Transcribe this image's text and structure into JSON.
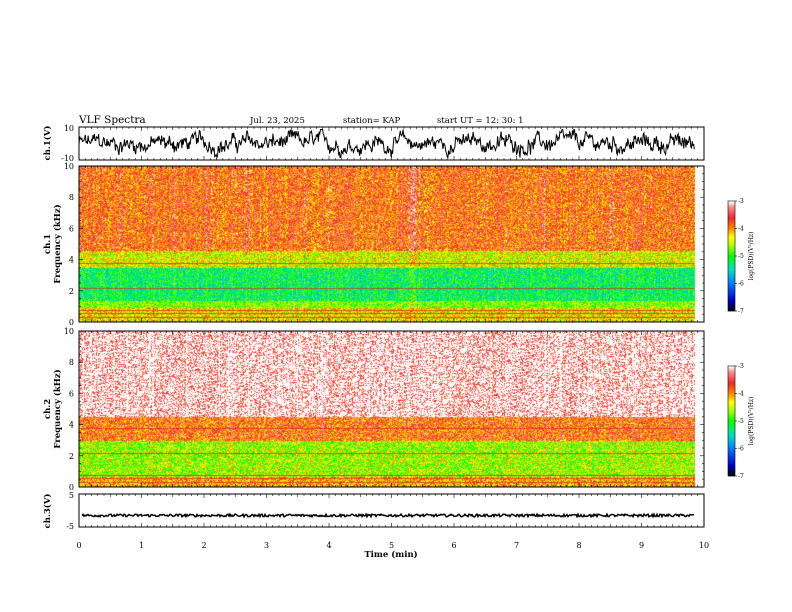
{
  "header": {
    "title": "VLF Spectra",
    "date": "Jul. 23, 2025",
    "station": "station= KAP",
    "start": "start  UT =   12: 30: 1"
  },
  "chart_data": [
    {
      "type": "line",
      "name": "ch1-waveform",
      "ylabel": "ch.1(V)",
      "ylim": [
        -10,
        10
      ],
      "ytick_labels": [
        "10",
        "-10"
      ],
      "xlim": [
        0,
        10
      ],
      "description_series": "voltage trace, fluctuating roughly between -8 and 8 V"
    },
    {
      "type": "heatmap",
      "name": "ch1-spectrogram",
      "ylabel": "ch.1\nFrequency  (kHz)",
      "ylim": [
        0,
        10
      ],
      "xlim": [
        0,
        10
      ],
      "data_end_min": 9.85,
      "ytick_labels": [
        "0",
        "2",
        "4",
        "6",
        "8",
        "10"
      ],
      "bands": [
        {
          "from_khz": 0.0,
          "to_khz": 0.9,
          "log_psd": -4.3
        },
        {
          "from_khz": 0.9,
          "to_khz": 1.4,
          "log_psd": -4.7
        },
        {
          "from_khz": 1.4,
          "to_khz": 3.5,
          "log_psd": -5.2
        },
        {
          "from_khz": 3.5,
          "to_khz": 4.6,
          "log_psd": -4.4
        },
        {
          "from_khz": 4.6,
          "to_khz": 10.0,
          "log_psd": -3.8
        }
      ],
      "colorbar": {
        "label": "log(PSD)(V²/Hz)",
        "ticks": [
          "-3",
          "-4",
          "-5",
          "-6",
          "-7"
        ],
        "range": [
          -7,
          -3
        ]
      }
    },
    {
      "type": "heatmap",
      "name": "ch2-spectrogram",
      "ylabel": "ch.2\nFrequency  (kHz)",
      "ylim": [
        0,
        10
      ],
      "xlim": [
        0,
        10
      ],
      "data_end_min": 9.85,
      "ytick_labels": [
        "0",
        "2",
        "4",
        "6",
        "8",
        "10"
      ],
      "bands": [
        {
          "from_khz": 0.0,
          "to_khz": 0.7,
          "log_psd": -4.1
        },
        {
          "from_khz": 0.7,
          "to_khz": 3.0,
          "log_psd": -4.6
        },
        {
          "from_khz": 3.0,
          "to_khz": 4.5,
          "log_psd": -3.8
        },
        {
          "from_khz": 4.5,
          "to_khz": 10.0,
          "log_psd": -3.2
        }
      ],
      "colorbar": {
        "label": "log(PSD)(V²/Hz)",
        "ticks": [
          "-3",
          "-4",
          "-5",
          "-6",
          "-7"
        ],
        "range": [
          -7,
          -3
        ]
      }
    },
    {
      "type": "line",
      "name": "ch3-waveform",
      "ylabel": "ch.3(V)",
      "ylim": [
        -5,
        5
      ],
      "ytick_labels": [
        "5",
        "-5"
      ],
      "xlim": [
        0,
        10
      ],
      "xlabel": "Time  (min)",
      "xtick_labels": [
        "0",
        "1",
        "2",
        "3",
        "4",
        "5",
        "6",
        "7",
        "8",
        "9",
        "10"
      ],
      "baseline_v": -1.5,
      "description_series": "nearly flat trace near -1.5 V"
    }
  ]
}
